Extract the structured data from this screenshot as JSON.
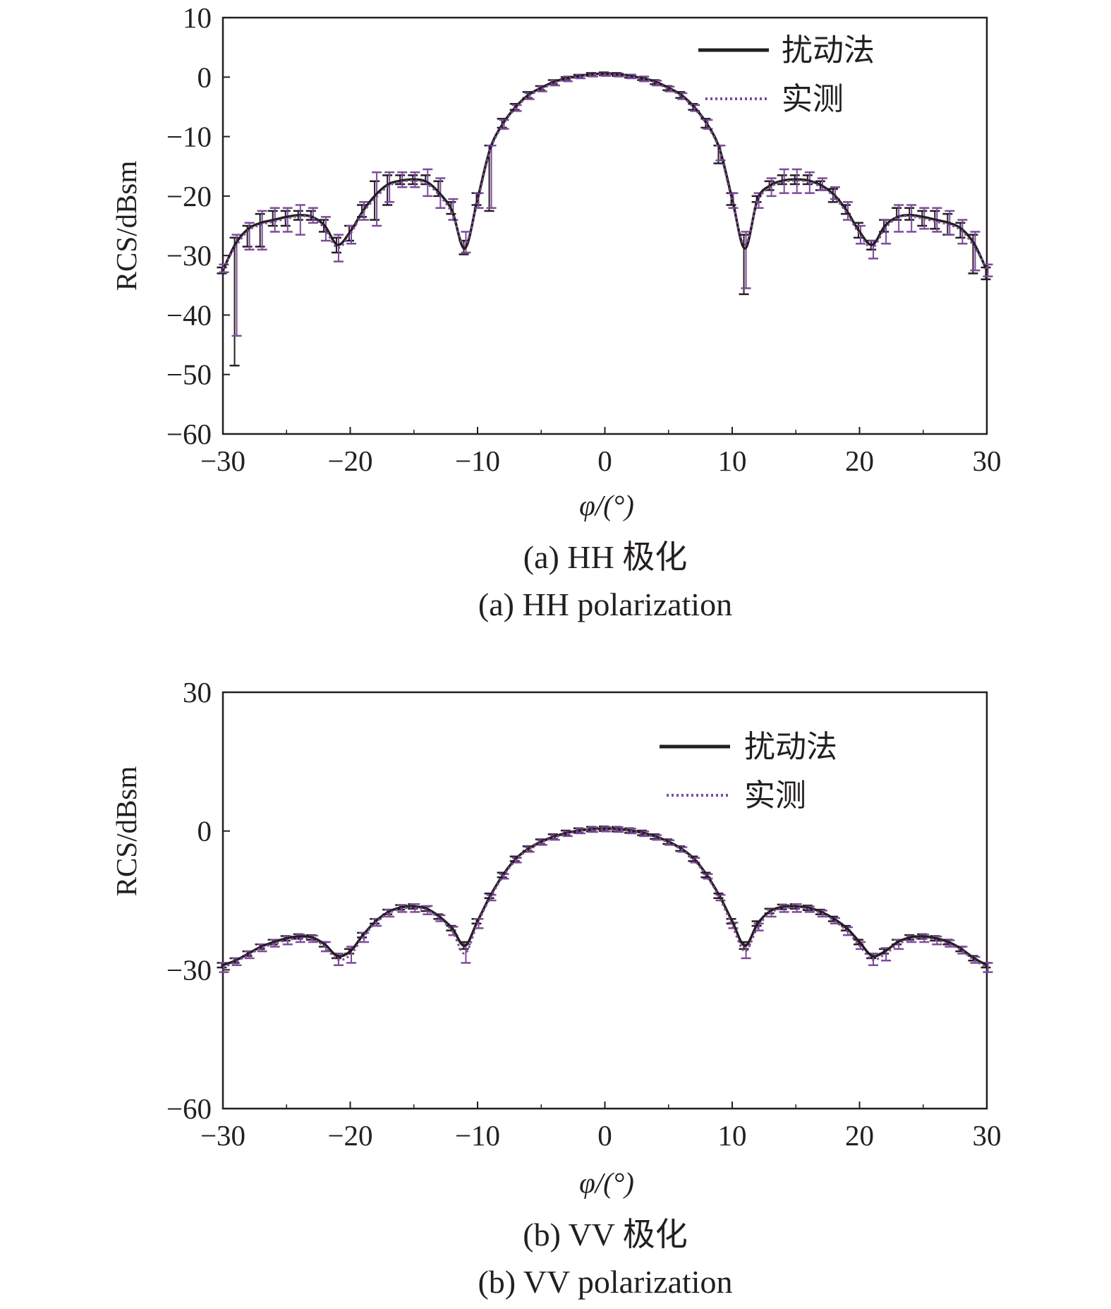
{
  "colors": {
    "model": "#231f20",
    "measured": "#7e4a9c",
    "axis": "#231f20"
  },
  "chart_data": [
    {
      "type": "line",
      "panel": "a",
      "xlabel": "φ/(°)",
      "ylabel": "RCS/dBsm",
      "xlim": [
        -30,
        30
      ],
      "ylim": [
        -60,
        10
      ],
      "x_ticks": [
        -30,
        -20,
        -10,
        0,
        10,
        20,
        30
      ],
      "y_ticks": [
        10,
        0,
        -10,
        -20,
        -30,
        -40,
        -50,
        -60
      ],
      "x_tick_labels": [
        "−30",
        "−20",
        "−10",
        "0",
        "10",
        "20",
        "30"
      ],
      "y_tick_labels": [
        "10",
        "0",
        "−10",
        "−20",
        "−30",
        "−40",
        "−50",
        "−60"
      ],
      "legend": {
        "position": "top-right",
        "entries": [
          "扰动法",
          "实测"
        ]
      },
      "caption_cn": "(a) HH 极化",
      "caption_en": "(a) HH polarization",
      "x": [
        -30,
        -29,
        -28,
        -27,
        -26,
        -25,
        -24,
        -23,
        -22,
        -21,
        -20,
        -19,
        -18,
        -17,
        -16,
        -15,
        -14,
        -13,
        -12,
        -11,
        -10,
        -9,
        -8,
        -7,
        -6,
        -5,
        -4,
        -3,
        -2,
        -1,
        0,
        1,
        2,
        3,
        4,
        5,
        6,
        7,
        8,
        9,
        10,
        11,
        12,
        13,
        14,
        15,
        16,
        17,
        18,
        19,
        20,
        21,
        22,
        23,
        24,
        25,
        26,
        27,
        28,
        29,
        30
      ],
      "series": [
        {
          "name": "扰动法",
          "style": "solid",
          "values": [
            -32.5,
            -28,
            -25.5,
            -24.5,
            -24,
            -23.5,
            -23.2,
            -23.5,
            -25,
            -28.2,
            -26,
            -22.5,
            -19.8,
            -18,
            -17.4,
            -17.2,
            -17.6,
            -19.5,
            -22.5,
            -28.8,
            -20.5,
            -12,
            -7.8,
            -5,
            -3,
            -1.8,
            -0.8,
            -0.2,
            0.2,
            0.5,
            0.6,
            0.5,
            0.2,
            -0.2,
            -0.8,
            -1.8,
            -3,
            -5,
            -7.8,
            -12,
            -20.5,
            -28.8,
            -20.5,
            -18.2,
            -17.4,
            -17.2,
            -17.4,
            -18.2,
            -19.8,
            -22.5,
            -26,
            -28.2,
            -25,
            -23.5,
            -23.2,
            -23.5,
            -24,
            -24.5,
            -25.5,
            -28,
            -32.5
          ],
          "err_low": [
            -33,
            -48.5,
            -28.5,
            -28.5,
            -25,
            -25,
            -24,
            -24,
            -26,
            -29.5,
            -27.5,
            -23.5,
            -24,
            -21.5,
            -18,
            -18,
            -18,
            -20,
            -23,
            -29.8,
            -21.5,
            -22.5,
            -8.5,
            -5.5,
            -3.5,
            -2.2,
            -1.2,
            -0.5,
            -0.1,
            0.2,
            0.3,
            0.2,
            -0.1,
            -0.5,
            -1.2,
            -2.2,
            -3.5,
            -5.5,
            -8.5,
            -14.5,
            -21.5,
            -36.5,
            -21,
            -19,
            -18,
            -18,
            -18,
            -19,
            -21,
            -23,
            -27,
            -29,
            -26,
            -24,
            -24,
            -25,
            -25.5,
            -26.5,
            -27,
            -33,
            -34
          ],
          "err_high": [
            -32,
            -27,
            -25,
            -23,
            -22.5,
            -22.5,
            -22.5,
            -22.5,
            -24,
            -27,
            -25,
            -21.5,
            -17.5,
            -16.5,
            -16.5,
            -16.5,
            -16.5,
            -17.5,
            -21,
            -27.5,
            -19.5,
            -11.5,
            -7,
            -4.5,
            -2.5,
            -1.5,
            -0.5,
            0,
            0.4,
            0.7,
            0.8,
            0.7,
            0.4,
            0,
            -0.5,
            -1.5,
            -2.5,
            -4.5,
            -7,
            -11.5,
            -19.5,
            -26.5,
            -20,
            -17.5,
            -16.5,
            -16.5,
            -16.5,
            -17.5,
            -18.8,
            -21.5,
            -24.5,
            -27.5,
            -24,
            -22,
            -22,
            -22.5,
            -22.5,
            -23,
            -24.5,
            -26.5,
            -32
          ]
        },
        {
          "name": "实测",
          "style": "dotted",
          "values": [
            -32.2,
            -28.5,
            -25.8,
            -24.8,
            -24.3,
            -23.8,
            -23.4,
            -23.6,
            -25.5,
            -28.7,
            -26.4,
            -22.8,
            -20.3,
            -18.3,
            -17.6,
            -17.4,
            -17.9,
            -19.9,
            -22.9,
            -28.2,
            -20.9,
            -12.3,
            -8,
            -5.2,
            -3.2,
            -2,
            -1,
            -0.3,
            0.1,
            0.4,
            0.5,
            0.4,
            0.1,
            -0.3,
            -1,
            -2,
            -3.2,
            -5.2,
            -8,
            -12.3,
            -20.9,
            -28.2,
            -20.8,
            -18.5,
            -17.6,
            -17.4,
            -17.6,
            -18.5,
            -20.1,
            -22.9,
            -26.4,
            -28.7,
            -25.5,
            -23.6,
            -23.4,
            -23.8,
            -24.3,
            -24.8,
            -25.8,
            -28.5,
            -32.2
          ],
          "err_low": [
            -32.8,
            -43.5,
            -29,
            -29,
            -26,
            -26,
            -26.5,
            -24.5,
            -27.5,
            -31,
            -28,
            -24,
            -25,
            -21,
            -18.5,
            -18.5,
            -20,
            -22,
            -24,
            -29.5,
            -22,
            -22,
            -8.7,
            -5.7,
            -3.7,
            -2.4,
            -1.4,
            -0.7,
            -0.2,
            0.1,
            0.2,
            0.1,
            -0.2,
            -0.7,
            -1.4,
            -2.4,
            -3.7,
            -5.7,
            -8.7,
            -14,
            -22,
            -35.5,
            -22,
            -20,
            -19.5,
            -19.5,
            -19.5,
            -19,
            -20.5,
            -24,
            -28,
            -30.5,
            -28,
            -26,
            -26,
            -25.5,
            -26,
            -26.5,
            -28,
            -32.5,
            -33.5
          ],
          "err_high": [
            -31.5,
            -26.5,
            -24.5,
            -22.5,
            -22,
            -22,
            -21.5,
            -22,
            -23.5,
            -26.5,
            -25,
            -21,
            -16,
            -16,
            -16,
            -16,
            -15.5,
            -17,
            -20.5,
            -26,
            -19.5,
            -11.5,
            -7.2,
            -4.7,
            -2.7,
            -1.6,
            -0.6,
            0.1,
            0.4,
            0.6,
            0.7,
            0.6,
            0.4,
            0.1,
            -0.6,
            -1.6,
            -2.7,
            -4.7,
            -7.2,
            -11.5,
            -19.5,
            -26,
            -19.5,
            -17,
            -15.5,
            -15.5,
            -16,
            -17,
            -18.5,
            -21,
            -25,
            -27.5,
            -24,
            -21.5,
            -21.5,
            -22,
            -22,
            -22.5,
            -24,
            -26,
            -31.5
          ]
        }
      ]
    },
    {
      "type": "line",
      "panel": "b",
      "xlabel": "φ/(°)",
      "ylabel": "RCS/dBsm",
      "xlim": [
        -30,
        30
      ],
      "ylim": [
        -60,
        30
      ],
      "x_ticks": [
        -30,
        -20,
        -10,
        0,
        10,
        20,
        30
      ],
      "y_ticks": [
        30,
        0,
        -30,
        -60
      ],
      "x_tick_labels": [
        "−30",
        "−20",
        "−10",
        "0",
        "10",
        "20",
        "30"
      ],
      "y_tick_labels": [
        "30",
        "0",
        "−30",
        "−60"
      ],
      "legend": {
        "position": "top-right",
        "entries": [
          "扰动法",
          "实测"
        ]
      },
      "caption_cn": "(b) VV 极化",
      "caption_en": "(b) VV polarization",
      "x": [
        -30,
        -29,
        -28,
        -27,
        -26,
        -25,
        -24,
        -23,
        -22,
        -21,
        -20,
        -19,
        -18,
        -17,
        -16,
        -15,
        -14,
        -13,
        -12,
        -11,
        -10,
        -9,
        -8,
        -7,
        -6,
        -5,
        -4,
        -3,
        -2,
        -1,
        0,
        1,
        2,
        3,
        4,
        5,
        6,
        7,
        8,
        9,
        10,
        11,
        12,
        13,
        14,
        15,
        16,
        17,
        18,
        19,
        20,
        21,
        22,
        23,
        24,
        25,
        26,
        27,
        28,
        29,
        30
      ],
      "series": [
        {
          "name": "扰动法",
          "style": "solid",
          "values": [
            -29,
            -28,
            -26.5,
            -25,
            -24,
            -23.2,
            -22.8,
            -23,
            -24.5,
            -27,
            -26,
            -22.5,
            -19.5,
            -17.5,
            -16.5,
            -16.3,
            -16.8,
            -18.5,
            -21,
            -24.8,
            -19.5,
            -14,
            -9.5,
            -6,
            -3.8,
            -2.3,
            -1.2,
            -0.4,
            0.1,
            0.4,
            0.5,
            0.4,
            0.1,
            -0.4,
            -1.2,
            -2.3,
            -3.8,
            -6,
            -9.5,
            -14,
            -19.5,
            -24.8,
            -20,
            -17.3,
            -16.4,
            -16.3,
            -16.6,
            -17.5,
            -19,
            -21,
            -24,
            -27,
            -26,
            -24,
            -23,
            -22.8,
            -23.2,
            -24,
            -25.5,
            -27.5,
            -29
          ],
          "err_low": [
            -29.5,
            -28.5,
            -27,
            -25.5,
            -24.5,
            -23.7,
            -23.3,
            -23.5,
            -25,
            -27.5,
            -26.5,
            -23,
            -20,
            -18,
            -17,
            -16.8,
            -17.3,
            -19,
            -21.5,
            -25.5,
            -20,
            -14.5,
            -10,
            -6.5,
            -4.3,
            -2.8,
            -1.7,
            -0.9,
            -0.4,
            -0.1,
            0,
            -0.1,
            -0.4,
            -0.9,
            -1.7,
            -2.8,
            -4.3,
            -6.5,
            -10,
            -14.5,
            -20,
            -25.5,
            -20.5,
            -17.8,
            -16.9,
            -16.8,
            -17.1,
            -18,
            -19.5,
            -21.5,
            -24.5,
            -27.5,
            -26.5,
            -24.5,
            -23.5,
            -23.3,
            -23.7,
            -24.5,
            -26,
            -28,
            -29.5
          ],
          "err_high": [
            -28.5,
            -27.5,
            -26,
            -24.5,
            -23.5,
            -22.7,
            -22.3,
            -22.5,
            -24,
            -26.5,
            -25.5,
            -22,
            -19,
            -17,
            -16,
            -15.8,
            -16.3,
            -18,
            -20.5,
            -24,
            -19,
            -13.5,
            -9,
            -5.5,
            -3.3,
            -1.8,
            -0.7,
            0.1,
            0.6,
            0.9,
            1,
            0.9,
            0.6,
            0.1,
            -0.7,
            -1.8,
            -3.3,
            -5.5,
            -9,
            -13.5,
            -19,
            -24,
            -19.5,
            -16.8,
            -15.9,
            -15.8,
            -16.1,
            -17,
            -18.5,
            -20.5,
            -23.5,
            -26.5,
            -25.5,
            -23.5,
            -22.5,
            -22.3,
            -22.7,
            -23.5,
            -25,
            -27,
            -28.5
          ]
        },
        {
          "name": "实测",
          "style": "dotted",
          "values": [
            -29.5,
            -28.3,
            -26.8,
            -25.3,
            -24.4,
            -23.6,
            -23.2,
            -23.4,
            -25,
            -27.8,
            -26.8,
            -23,
            -19.8,
            -17.8,
            -16.8,
            -16.6,
            -17.1,
            -18.9,
            -21.6,
            -26.5,
            -20,
            -14.4,
            -9.8,
            -6.3,
            -4,
            -2.5,
            -1.4,
            -0.6,
            0,
            0.3,
            0.4,
            0.3,
            0,
            -0.6,
            -1.4,
            -2.5,
            -4,
            -6.3,
            -9.8,
            -14.4,
            -20.4,
            -26,
            -20.8,
            -17.7,
            -16.7,
            -16.6,
            -16.9,
            -17.8,
            -19.4,
            -21.6,
            -24.8,
            -27.8,
            -26.6,
            -24.5,
            -23.4,
            -23.2,
            -23.6,
            -24.4,
            -25.8,
            -27.9,
            -29.5
          ],
          "err_low": [
            -30.5,
            -29,
            -27.5,
            -26,
            -25,
            -24.5,
            -24,
            -24,
            -26,
            -29,
            -28.5,
            -24,
            -20.5,
            -18.5,
            -17.5,
            -17.5,
            -18,
            -19.5,
            -22.5,
            -28.5,
            -21,
            -15,
            -10.3,
            -6.8,
            -4.5,
            -3,
            -1.9,
            -1.1,
            -0.5,
            -0.2,
            -0.1,
            -0.2,
            -0.5,
            -1.1,
            -1.9,
            -3,
            -4.5,
            -6.8,
            -10.3,
            -15,
            -21,
            -27.5,
            -21.5,
            -18.5,
            -17.5,
            -17.5,
            -17.5,
            -18.5,
            -20,
            -22.5,
            -25.5,
            -29,
            -28,
            -25.5,
            -24,
            -24,
            -24.5,
            -25,
            -26.5,
            -28.5,
            -30.5
          ],
          "err_high": [
            -28.5,
            -27.5,
            -26,
            -24.5,
            -23.5,
            -22.8,
            -22.4,
            -22.6,
            -24,
            -26.5,
            -25,
            -22,
            -19,
            -17,
            -16,
            -15.8,
            -16.2,
            -18.2,
            -20.7,
            -24.5,
            -19,
            -13.8,
            -9.3,
            -5.8,
            -3.5,
            -2,
            -0.9,
            -0.1,
            0.5,
            0.8,
            0.9,
            0.8,
            0.5,
            -0.1,
            -0.9,
            -2,
            -3.5,
            -5.8,
            -9.3,
            -13.8,
            -19.8,
            -24.5,
            -20,
            -17,
            -16,
            -15.8,
            -16.3,
            -17.2,
            -18.8,
            -20.8,
            -24,
            -26.5,
            -25.3,
            -23.5,
            -22.7,
            -22.4,
            -22.8,
            -23.6,
            -25,
            -27.2,
            -28.5
          ]
        }
      ]
    }
  ]
}
